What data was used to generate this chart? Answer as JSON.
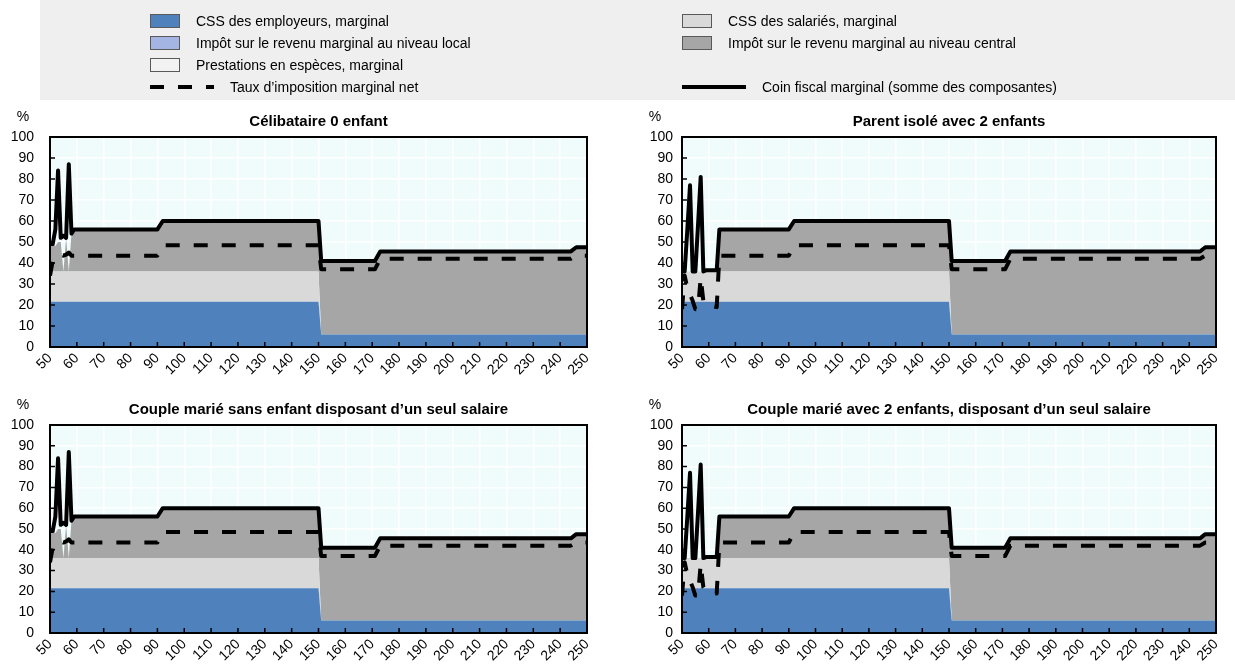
{
  "chart_data": [
    {
      "type": "area",
      "title": "Célibataire 0 enfant",
      "ylabel": "%",
      "x": [
        50,
        51,
        52,
        53,
        54,
        55,
        56,
        57,
        58,
        59,
        63,
        64,
        90,
        92,
        150,
        151,
        171,
        173,
        244,
        246,
        250
      ],
      "xlim": [
        50,
        250
      ],
      "xticks": [
        50,
        60,
        70,
        80,
        90,
        100,
        110,
        120,
        130,
        140,
        150,
        160,
        170,
        180,
        190,
        200,
        210,
        220,
        230,
        240,
        250
      ],
      "ylim": [
        0,
        100
      ],
      "yticks": [
        0,
        10,
        20,
        30,
        40,
        50,
        60,
        70,
        80,
        90,
        100
      ],
      "stacked": true,
      "grid": true,
      "marker": "none",
      "legend": "top",
      "series": [
        {
          "name": "CSS des employeurs, marginal",
          "color": "#4f81bd",
          "values": [
            21.5,
            21.5,
            21.5,
            21.5,
            21.5,
            21.5,
            21.5,
            21.5,
            21.5,
            21.5,
            21.5,
            21.5,
            21.5,
            21.5,
            21.5,
            6,
            6,
            6,
            6,
            6,
            6
          ]
        },
        {
          "name": "CSS des salariés, marginal",
          "color": "#d9d9d9",
          "values": [
            14.5,
            14.5,
            14.5,
            14.5,
            14.5,
            14.5,
            14.5,
            14.5,
            14.5,
            14.5,
            14.5,
            14.5,
            14.5,
            14.5,
            14.5,
            0,
            0,
            0,
            0,
            0,
            0
          ]
        },
        {
          "name": "Impôt sur le revenu marginal au niveau local",
          "color": "#a4b5e3",
          "values": [
            null,
            null,
            null,
            null,
            null,
            null,
            null,
            null,
            null,
            null,
            null,
            null,
            null,
            null,
            null,
            null,
            null,
            null,
            null,
            null,
            null
          ]
        },
        {
          "name": "Impôt sur le revenu marginal au niveau central",
          "color": "#a6a6a6",
          "values": [
            14,
            14,
            12,
            14,
            14,
            0,
            16,
            0,
            18,
            20,
            20,
            20,
            20,
            24,
            24,
            35,
            35,
            39.5,
            39.5,
            41.5,
            41.5
          ]
        },
        {
          "name": "Prestations en espèces, marginal",
          "color": "#f2f2f2",
          "values": [
            null,
            null,
            null,
            null,
            null,
            null,
            null,
            null,
            null,
            null,
            null,
            null,
            null,
            null,
            null,
            null,
            null,
            null,
            null,
            null,
            null
          ]
        },
        {
          "name": "Taux d’imposition marginal net",
          "type": "line",
          "color": "#000000",
          "line_style": "dashed",
          "values": [
            34,
            41,
            43,
            44,
            44,
            43.5,
            44,
            45,
            43.5,
            43.5,
            43.5,
            43.5,
            43.5,
            48.5,
            48.5,
            37,
            37,
            42,
            42,
            43.5,
            43.5
          ]
        },
        {
          "name": "Coin fiscal marginal (somme des composantes)",
          "type": "line",
          "color": "#000000",
          "line_style": "solid",
          "values": [
            49,
            49,
            56,
            84,
            52,
            53,
            52,
            87,
            54,
            56,
            56,
            56,
            56,
            60,
            60,
            41,
            41,
            45.5,
            45.5,
            47.5,
            47.5
          ]
        }
      ]
    },
    {
      "type": "area",
      "title": "Parent isolé avec 2 enfants",
      "ylabel": "%",
      "x": [
        50,
        51,
        52,
        53,
        54,
        55,
        56,
        57,
        58,
        59,
        63,
        64,
        90,
        92,
        150,
        151,
        171,
        173,
        244,
        246,
        250
      ],
      "xlim": [
        50,
        250
      ],
      "xticks": [
        50,
        60,
        70,
        80,
        90,
        100,
        110,
        120,
        130,
        140,
        150,
        160,
        170,
        180,
        190,
        200,
        210,
        220,
        230,
        240,
        250
      ],
      "ylim": [
        0,
        100
      ],
      "yticks": [
        0,
        10,
        20,
        30,
        40,
        50,
        60,
        70,
        80,
        90,
        100
      ],
      "stacked": true,
      "grid": true,
      "marker": "none",
      "series": [
        {
          "color": "#4f81bd",
          "values": [
            21.5,
            21.5,
            21.5,
            21.5,
            21.5,
            21.5,
            21.5,
            21.5,
            21.5,
            21.5,
            21.5,
            21.5,
            21.5,
            21.5,
            21.5,
            6,
            6,
            6,
            6,
            6,
            6
          ]
        },
        {
          "color": "#d9d9d9",
          "values": [
            14.5,
            14.5,
            14.5,
            14.5,
            14.5,
            14.5,
            14.5,
            14.5,
            14.5,
            14.5,
            14.5,
            14.5,
            14.5,
            14.5,
            14.5,
            0,
            0,
            0,
            0,
            0,
            0
          ]
        },
        {
          "color": "#a4b5e3",
          "values": [
            null,
            null,
            null,
            null,
            null,
            null,
            null,
            null,
            null,
            null,
            null,
            null,
            null,
            null,
            null,
            null,
            null,
            null,
            null,
            null,
            null
          ]
        },
        {
          "color": "#a6a6a6",
          "values": [
            0,
            0,
            0,
            0,
            0,
            0,
            0,
            0,
            0,
            0,
            0,
            20,
            20,
            24,
            24,
            35,
            35,
            39.5,
            39.5,
            41.5,
            41.5
          ]
        },
        {
          "color": "#f2f2f2",
          "values": [
            null,
            null,
            null,
            null,
            null,
            null,
            null,
            null,
            null,
            null,
            null,
            null,
            null,
            null,
            null,
            null,
            null,
            null,
            null,
            null,
            null
          ]
        },
        {
          "type": "line",
          "color": "#000000",
          "line_style": "dashed",
          "values": [
            18,
            34,
            28,
            25,
            22,
            18,
            18,
            33,
            22,
            20,
            19,
            43.5,
            43.5,
            48.5,
            48.5,
            37,
            37,
            42,
            42,
            43.5,
            43.5
          ]
        },
        {
          "type": "line",
          "color": "#000000",
          "line_style": "solid",
          "values": [
            36,
            36,
            56,
            77,
            36,
            36,
            58,
            81,
            36,
            36.5,
            36.5,
            56,
            56,
            60,
            60,
            41,
            41,
            45.5,
            45.5,
            47.5,
            47.5
          ]
        }
      ]
    },
    {
      "type": "area",
      "title": "Couple marié sans enfant disposant d’un seul salaire",
      "ylabel": "%",
      "x": [
        50,
        51,
        52,
        53,
        54,
        55,
        56,
        57,
        58,
        59,
        63,
        64,
        90,
        92,
        150,
        151,
        171,
        173,
        244,
        246,
        250
      ],
      "xlim": [
        50,
        250
      ],
      "xticks": [
        50,
        60,
        70,
        80,
        90,
        100,
        110,
        120,
        130,
        140,
        150,
        160,
        170,
        180,
        190,
        200,
        210,
        220,
        230,
        240,
        250
      ],
      "ylim": [
        0,
        100
      ],
      "yticks": [
        0,
        10,
        20,
        30,
        40,
        50,
        60,
        70,
        80,
        90,
        100
      ],
      "stacked": true,
      "grid": true,
      "marker": "none",
      "series": [
        {
          "color": "#4f81bd",
          "values": [
            21.5,
            21.5,
            21.5,
            21.5,
            21.5,
            21.5,
            21.5,
            21.5,
            21.5,
            21.5,
            21.5,
            21.5,
            21.5,
            21.5,
            21.5,
            6,
            6,
            6,
            6,
            6,
            6
          ]
        },
        {
          "color": "#d9d9d9",
          "values": [
            14.5,
            14.5,
            14.5,
            14.5,
            14.5,
            14.5,
            14.5,
            14.5,
            14.5,
            14.5,
            14.5,
            14.5,
            14.5,
            14.5,
            14.5,
            0,
            0,
            0,
            0,
            0,
            0
          ]
        },
        {
          "color": "#a4b5e3",
          "values": [
            null,
            null,
            null,
            null,
            null,
            null,
            null,
            null,
            null,
            null,
            null,
            null,
            null,
            null,
            null,
            null,
            null,
            null,
            null,
            null,
            null
          ]
        },
        {
          "color": "#a6a6a6",
          "values": [
            14,
            14,
            12,
            14,
            14,
            0,
            16,
            0,
            18,
            20,
            20,
            20,
            20,
            24,
            24,
            35,
            35,
            39.5,
            39.5,
            41.5,
            41.5
          ]
        },
        {
          "color": "#f2f2f2",
          "values": [
            null,
            null,
            null,
            null,
            null,
            null,
            null,
            null,
            null,
            null,
            null,
            null,
            null,
            null,
            null,
            null,
            null,
            null,
            null,
            null,
            null
          ]
        },
        {
          "type": "line",
          "color": "#000000",
          "line_style": "dashed",
          "values": [
            34,
            41,
            43,
            44,
            44,
            43.5,
            44,
            45,
            43.5,
            43.5,
            43.5,
            43.5,
            43.5,
            48.5,
            48.5,
            37,
            37,
            42,
            42,
            43.5,
            43.5
          ]
        },
        {
          "type": "line",
          "color": "#000000",
          "line_style": "solid",
          "values": [
            49,
            49,
            56,
            84,
            52,
            53,
            52,
            87,
            54,
            56,
            56,
            56,
            56,
            60,
            60,
            41,
            41,
            45.5,
            45.5,
            47.5,
            47.5
          ]
        }
      ]
    },
    {
      "type": "area",
      "title": "Couple marié avec 2 enfants, disposant d’un seul salaire",
      "ylabel": "%",
      "x": [
        50,
        51,
        52,
        53,
        54,
        55,
        56,
        57,
        58,
        59,
        63,
        64,
        90,
        92,
        150,
        151,
        171,
        173,
        244,
        246,
        250
      ],
      "xlim": [
        50,
        250
      ],
      "xticks": [
        50,
        60,
        70,
        80,
        90,
        100,
        110,
        120,
        130,
        140,
        150,
        160,
        170,
        180,
        190,
        200,
        210,
        220,
        230,
        240,
        250
      ],
      "ylim": [
        0,
        100
      ],
      "yticks": [
        0,
        10,
        20,
        30,
        40,
        50,
        60,
        70,
        80,
        90,
        100
      ],
      "stacked": true,
      "grid": true,
      "marker": "none",
      "series": [
        {
          "color": "#4f81bd",
          "values": [
            21.5,
            21.5,
            21.5,
            21.5,
            21.5,
            21.5,
            21.5,
            21.5,
            21.5,
            21.5,
            21.5,
            21.5,
            21.5,
            21.5,
            21.5,
            6,
            6,
            6,
            6,
            6,
            6
          ]
        },
        {
          "color": "#d9d9d9",
          "values": [
            14.5,
            14.5,
            14.5,
            14.5,
            14.5,
            14.5,
            14.5,
            14.5,
            14.5,
            14.5,
            14.5,
            14.5,
            14.5,
            14.5,
            14.5,
            0,
            0,
            0,
            0,
            0,
            0
          ]
        },
        {
          "color": "#a4b5e3",
          "values": [
            null,
            null,
            null,
            null,
            null,
            null,
            null,
            null,
            null,
            null,
            null,
            null,
            null,
            null,
            null,
            null,
            null,
            null,
            null,
            null,
            null
          ]
        },
        {
          "color": "#a6a6a6",
          "values": [
            0,
            0,
            0,
            0,
            0,
            0,
            0,
            0,
            0,
            0,
            0,
            20,
            20,
            24,
            24,
            35,
            35,
            39.5,
            39.5,
            41.5,
            41.5
          ]
        },
        {
          "color": "#f2f2f2",
          "values": [
            null,
            null,
            null,
            null,
            null,
            null,
            null,
            null,
            null,
            null,
            null,
            null,
            null,
            null,
            null,
            null,
            null,
            null,
            null,
            null,
            null
          ]
        },
        {
          "type": "line",
          "color": "#000000",
          "line_style": "dashed",
          "values": [
            18,
            34,
            28,
            25,
            22,
            18,
            18,
            33,
            22,
            20,
            19,
            43.5,
            43.5,
            48.5,
            48.5,
            37,
            37,
            42,
            42,
            43.5,
            43.5
          ]
        },
        {
          "type": "line",
          "color": "#000000",
          "line_style": "solid",
          "values": [
            36,
            36,
            56,
            77,
            36,
            36,
            58,
            81,
            36,
            36.5,
            36.5,
            56,
            56,
            60,
            60,
            41,
            41,
            45.5,
            45.5,
            47.5,
            47.5
          ]
        }
      ]
    }
  ]
}
